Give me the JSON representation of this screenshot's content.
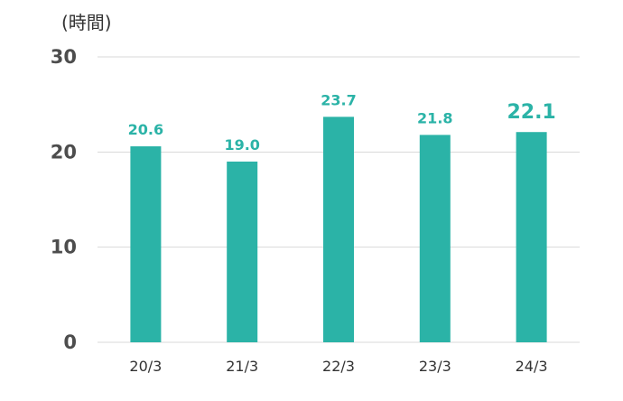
{
  "chart_data": {
    "type": "bar",
    "unit_label": "(時間)",
    "categories": [
      "20/3",
      "21/3",
      "22/3",
      "23/3",
      "24/3"
    ],
    "values": [
      20.6,
      19.0,
      23.7,
      21.8,
      22.1
    ],
    "value_labels": [
      "20.6",
      "19.0",
      "23.7",
      "21.8",
      "22.1"
    ],
    "highlight_index": 4,
    "ylim": [
      0,
      30
    ],
    "yticks": [
      0,
      10,
      20,
      30
    ],
    "grid": true,
    "colors": {
      "bar": "#2bb3a7",
      "label": "#2bb3a7",
      "grid": "#d9d9d9",
      "axis_text": "#4d4d4d",
      "category_text": "#333333"
    }
  }
}
